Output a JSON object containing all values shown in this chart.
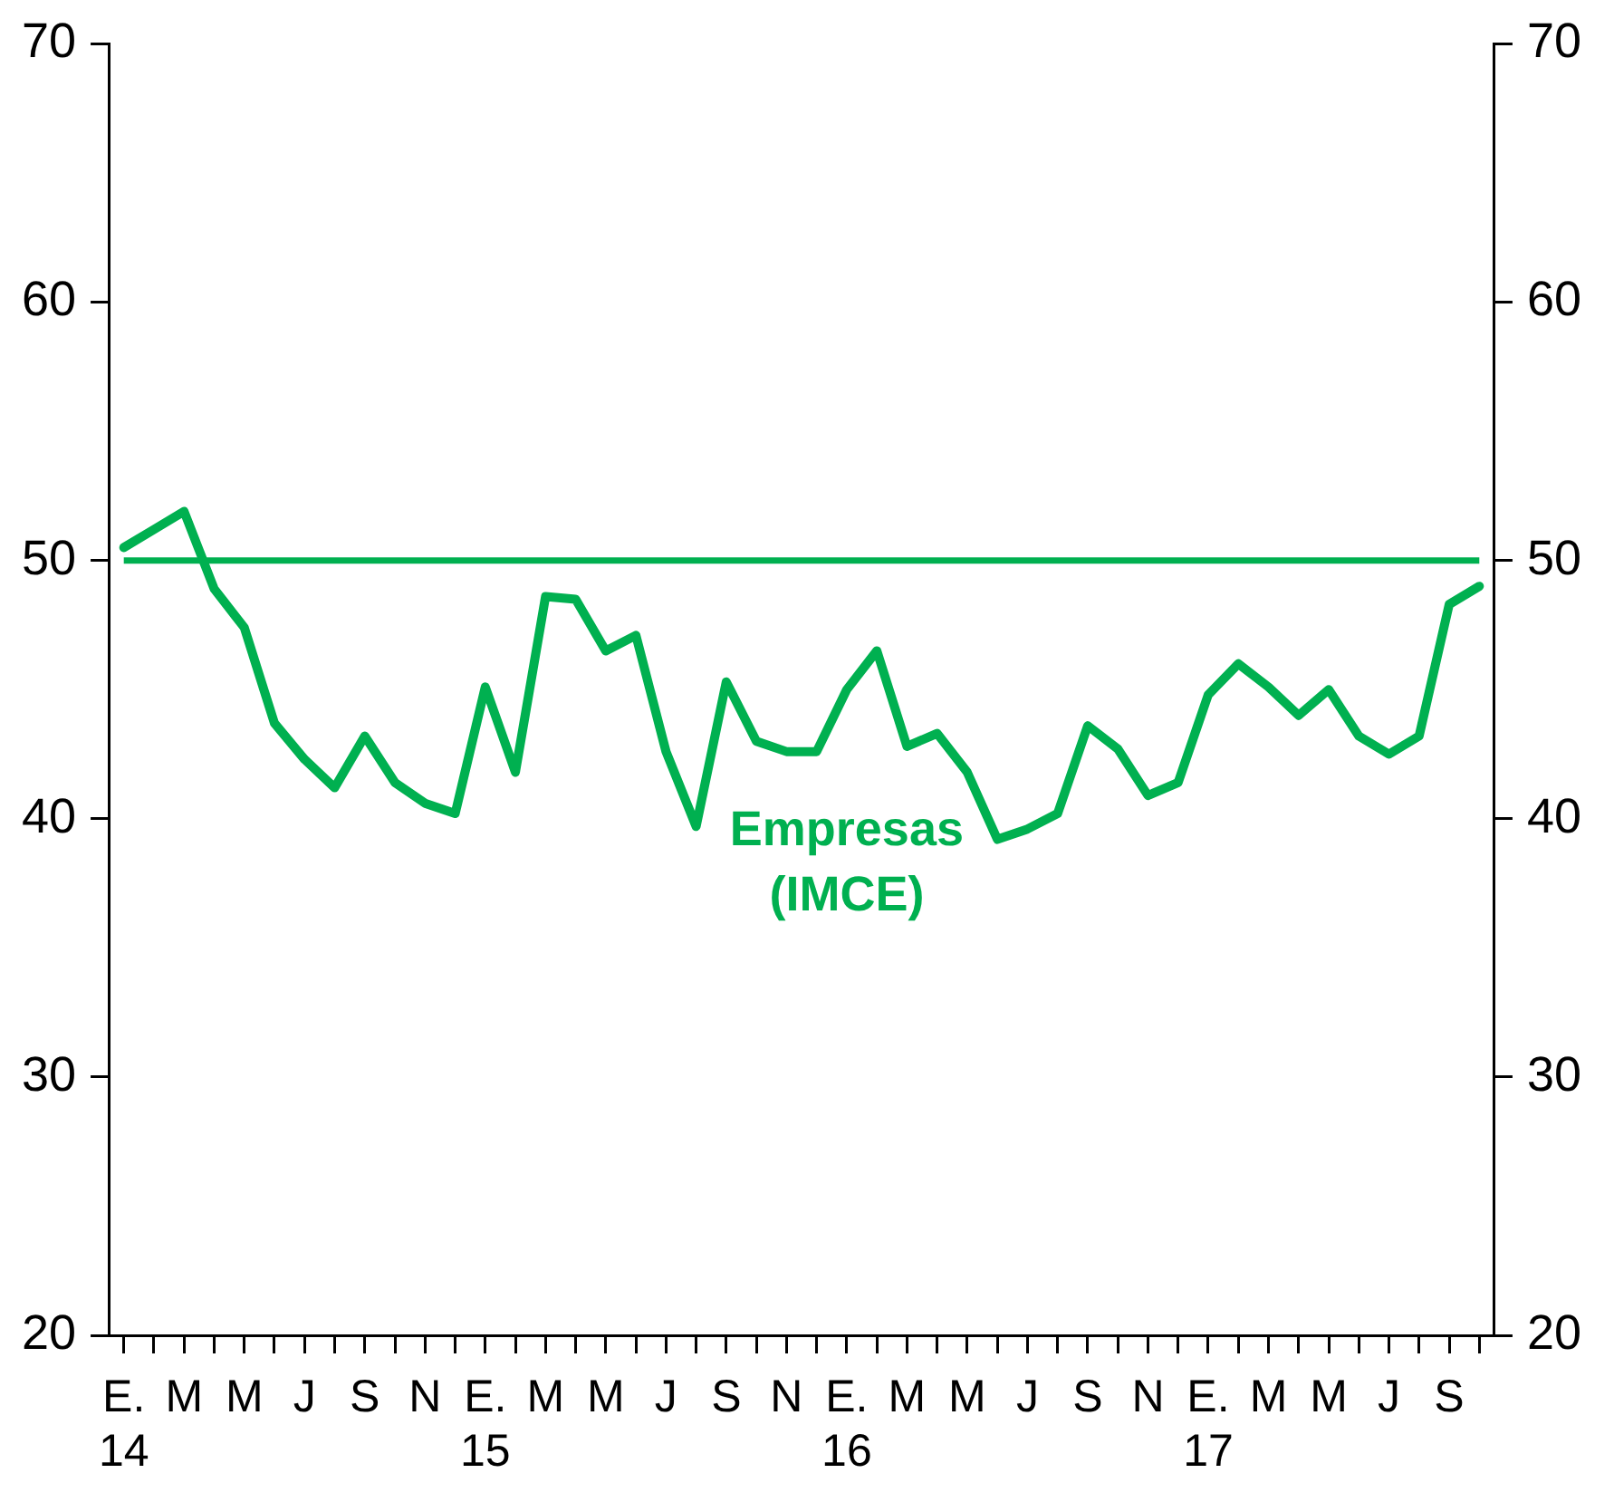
{
  "chart_data": {
    "type": "line",
    "categories": [
      "E.\n14",
      null,
      "M",
      null,
      "M",
      null,
      "J",
      null,
      "S",
      null,
      "N",
      null,
      "E.\n15",
      null,
      "M",
      null,
      "M",
      null,
      "J",
      null,
      "S",
      null,
      "N",
      null,
      "E.\n16",
      null,
      "M",
      null,
      "M",
      null,
      "J",
      null,
      "S",
      null,
      "N",
      null,
      "E.\n17",
      null,
      "M",
      null,
      "M",
      null,
      "J",
      null,
      "S",
      null
    ],
    "series": [
      {
        "name": "Empresas (IMCE)",
        "color": "#00b050",
        "values": [
          50.5,
          51.2,
          51.9,
          48.9,
          47.4,
          43.7,
          42.3,
          41.2,
          43.2,
          41.4,
          40.6,
          40.2,
          45.1,
          41.8,
          48.6,
          48.5,
          46.5,
          47.1,
          42.6,
          39.7,
          45.3,
          43.0,
          42.6,
          42.6,
          45.0,
          46.5,
          42.8,
          43.3,
          41.8,
          39.2,
          39.6,
          40.2,
          43.6,
          42.7,
          40.9,
          41.4,
          44.8,
          46.0,
          45.1,
          44.0,
          45.0,
          43.2,
          42.5,
          43.2,
          48.3,
          49.0
        ]
      }
    ],
    "ylim": [
      20,
      70
    ],
    "yticks": [
      20,
      30,
      40,
      50,
      60,
      70
    ],
    "y2lim": [
      20,
      70
    ],
    "y2ticks": [
      20,
      30,
      40,
      50,
      60,
      70
    ],
    "ref_lines": [
      {
        "axis": "y",
        "value": 50,
        "color": "#00b050"
      }
    ],
    "grid": false,
    "legend": false,
    "marker": "none",
    "line_style": "solid"
  }
}
